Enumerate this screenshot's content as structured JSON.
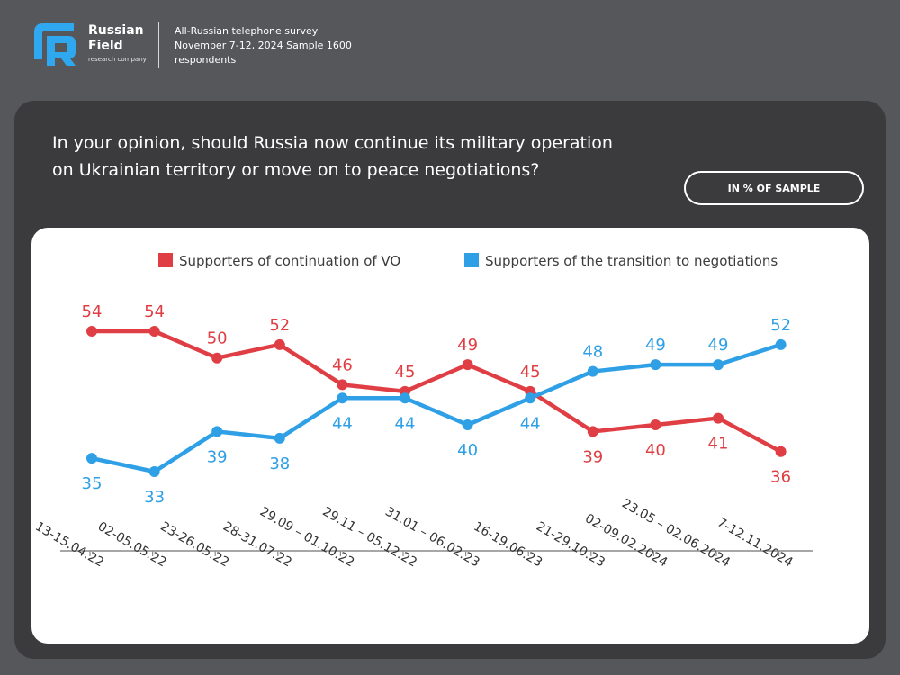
{
  "header": {
    "brand_name": "Russian Field",
    "brand_sub": "research company",
    "survey_info": "All-Russian telephone survey November 7-12, 2024 Sample 1600 respondents"
  },
  "question": "In your opinion, should Russia now continue its military operation on Ukrainian territory or move on to peace negotiations?",
  "unit_label": "IN % OF SAMPLE",
  "colors": {
    "continuation": "#df3f44",
    "negotiations": "#2f9fe6",
    "logo": "#2fa8f0"
  },
  "chart_data": {
    "type": "line",
    "title": "",
    "xlabel": "",
    "ylabel": "",
    "ylim": [
      25,
      60
    ],
    "grid": false,
    "legend_position": "top",
    "categories": [
      "13-15.04.22",
      "02-05.05.22",
      "23-26.05.22",
      "28-31.07.22",
      "29.09 – 01.10.22",
      "29.11 – 05.12.22",
      "31.01 – 06.02.23",
      "16-19.06.23",
      "21-29.10.23",
      "02-09.02.2024",
      "23.05 – 02.06.2024",
      "7-12.11.2024"
    ],
    "series": [
      {
        "name": "Supporters of continuation of VO",
        "color": "#df3f44",
        "values": [
          54,
          54,
          50,
          52,
          46,
          45,
          49,
          45,
          39,
          40,
          41,
          36
        ]
      },
      {
        "name": "Supporters of the transition to negotiations",
        "color": "#2f9fe6",
        "values": [
          35,
          33,
          39,
          38,
          44,
          44,
          40,
          44,
          48,
          49,
          49,
          52
        ]
      }
    ]
  }
}
